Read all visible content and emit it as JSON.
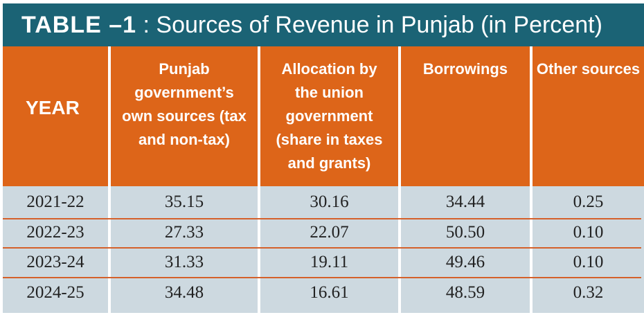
{
  "title": {
    "label": "TABLE –1",
    "text": ": Sources of Revenue in Punjab (in Percent)"
  },
  "table": {
    "headers": [
      "YEAR",
      "Punjab government’s own sources (tax and non-tax)",
      "Allocation by the union government (share in taxes and grants)",
      "Borrowings",
      "Other sources"
    ],
    "rows": [
      [
        "2021-22",
        "35.15",
        "30.16",
        "34.44",
        "0.25"
      ],
      [
        "2022-23",
        "27.33",
        "22.07",
        "50.50",
        "0.10"
      ],
      [
        "2023-24",
        "31.33",
        "19.11",
        "49.46",
        "0.10"
      ],
      [
        "2024-25",
        "34.48",
        "16.61",
        "48.59",
        "0.32"
      ]
    ]
  },
  "colors": {
    "title_bg": "#1b6375",
    "header_bg": "#dd6519",
    "body_bg": "#cdd9e0",
    "row_line": "#d5602a"
  }
}
